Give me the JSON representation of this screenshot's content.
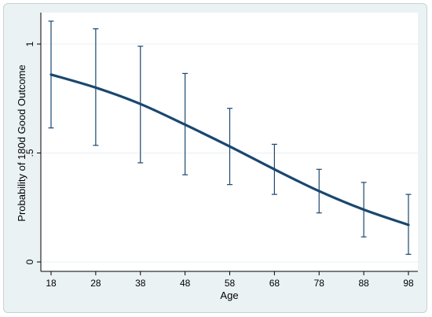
{
  "chart_data": {
    "type": "line",
    "title": "",
    "xlabel": "Age",
    "ylabel": "Probability of 180d Good Outcome",
    "x_ticks": [
      "18",
      "28",
      "38",
      "48",
      "58",
      "68",
      "78",
      "88",
      "98"
    ],
    "y_ticks": [
      "0",
      ".5",
      "1"
    ],
    "xlim": [
      18,
      98
    ],
    "ylim": [
      0,
      1
    ],
    "grid": true,
    "legend": "none",
    "series": [
      {
        "x": [
          18,
          28,
          38,
          48,
          58,
          68,
          78,
          88,
          98
        ],
        "y": [
          0.86,
          0.8,
          0.725,
          0.63,
          0.53,
          0.425,
          0.325,
          0.24,
          0.17
        ],
        "ci_low": [
          0.615,
          0.535,
          0.455,
          0.4,
          0.355,
          0.31,
          0.225,
          0.115,
          0.035
        ],
        "ci_high": [
          1.105,
          1.07,
          0.99,
          0.865,
          0.705,
          0.54,
          0.425,
          0.365,
          0.31
        ]
      }
    ],
    "colors": {
      "background": "#eaf2f3",
      "plot_region": "#ffffff",
      "line": "#1a476f",
      "error_bar": "#1a476f",
      "grid": "#eaf2f3"
    }
  }
}
